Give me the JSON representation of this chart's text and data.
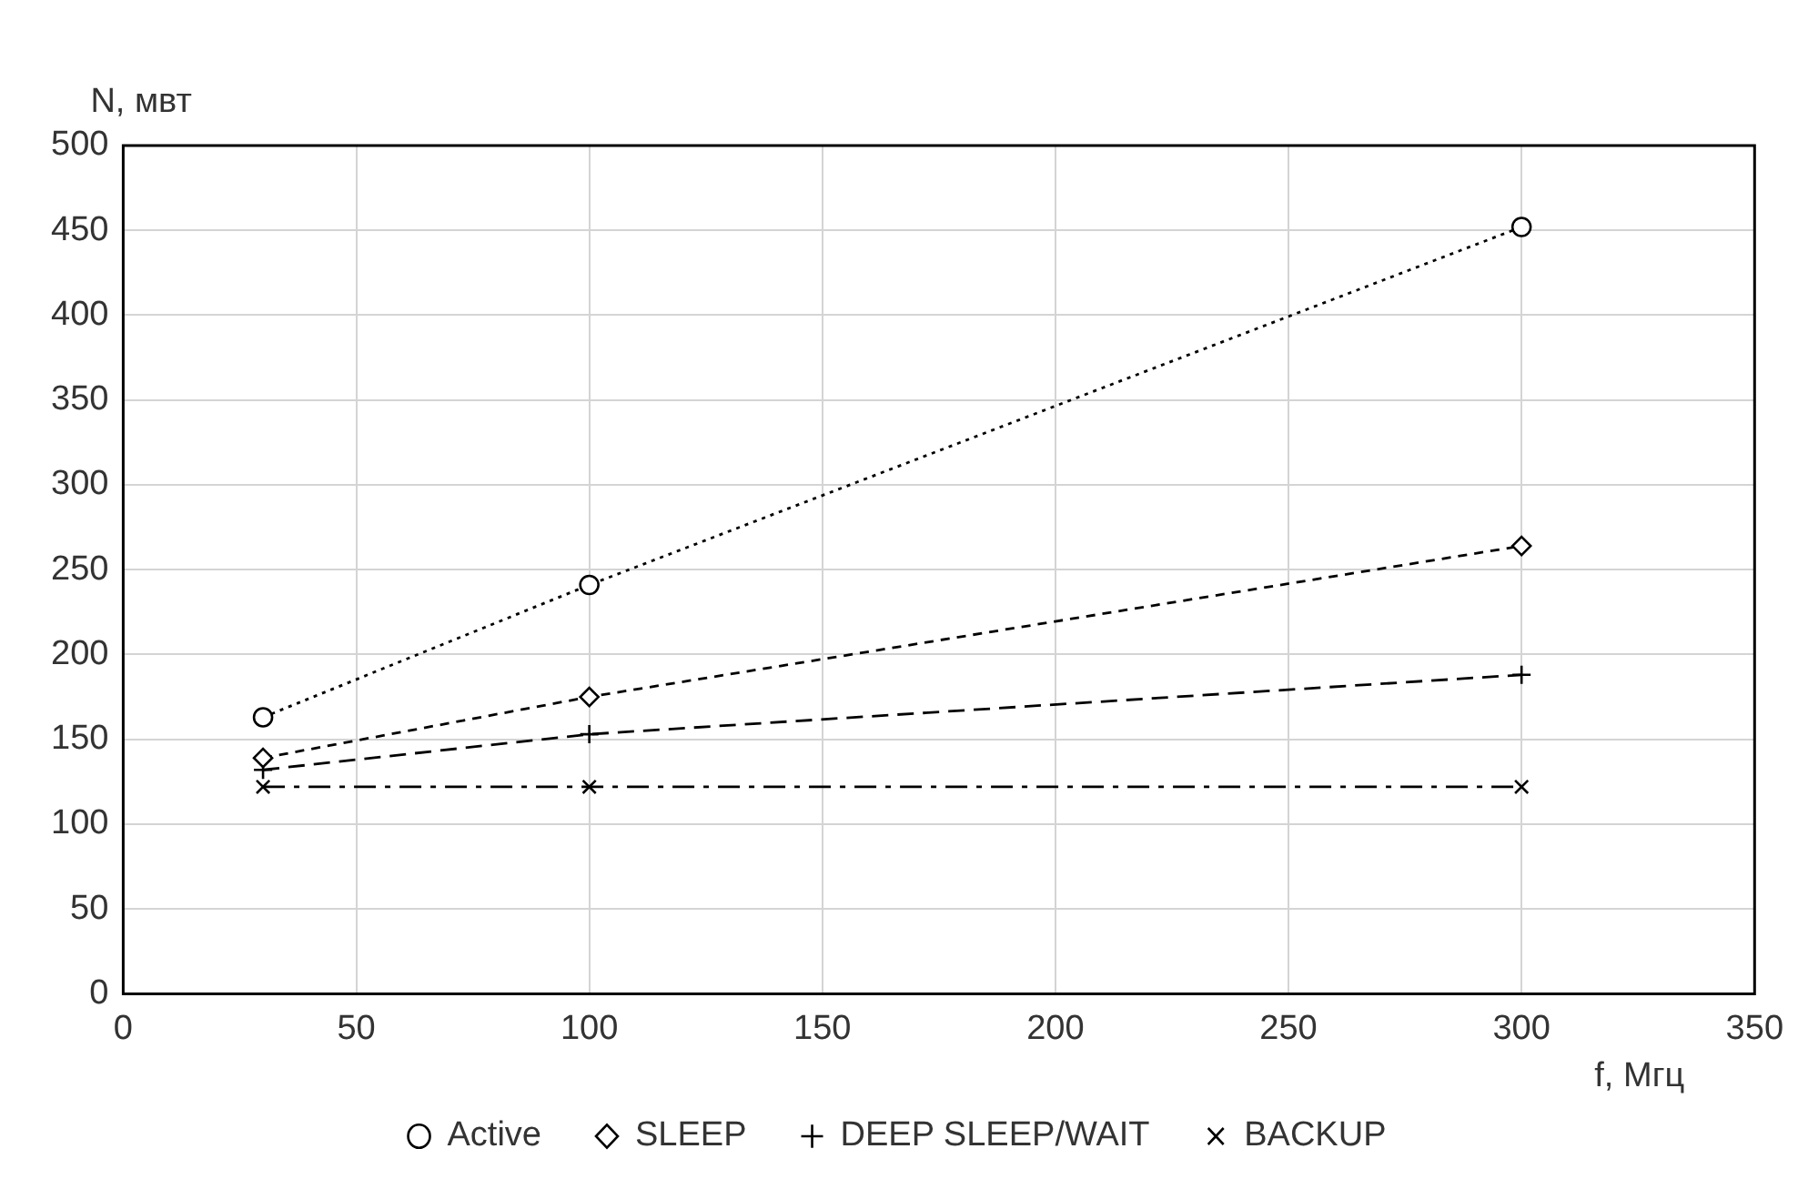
{
  "chart_data": {
    "type": "line",
    "xlabel": "f, Мгц",
    "ylabel": "N, мвт",
    "x": [
      30,
      100,
      300
    ],
    "series": [
      {
        "name": "Active",
        "color": "#000000",
        "values": [
          163,
          241,
          452
        ],
        "marker": "circle",
        "line_style": "dotted"
      },
      {
        "name": "SLEEP",
        "color": "#000000",
        "values": [
          139,
          175,
          264
        ],
        "marker": "diamond",
        "line_style": "dashed"
      },
      {
        "name": "DEEP SLEEP/WAIT",
        "color": "#000000",
        "values": [
          132,
          153,
          188
        ],
        "marker": "plus",
        "line_style": "longdash"
      },
      {
        "name": "BACKUP",
        "color": "#000000",
        "values": [
          122,
          122,
          122
        ],
        "marker": "cross",
        "line_style": "dashdot"
      }
    ],
    "xlim": [
      0,
      350
    ],
    "xticks": [
      0,
      50,
      100,
      150,
      200,
      250,
      300,
      350
    ],
    "ylim": [
      0,
      500
    ],
    "yticks": [
      0,
      50,
      100,
      150,
      200,
      250,
      300,
      350,
      400,
      450,
      500
    ],
    "grid": true,
    "legend": "bottom"
  }
}
